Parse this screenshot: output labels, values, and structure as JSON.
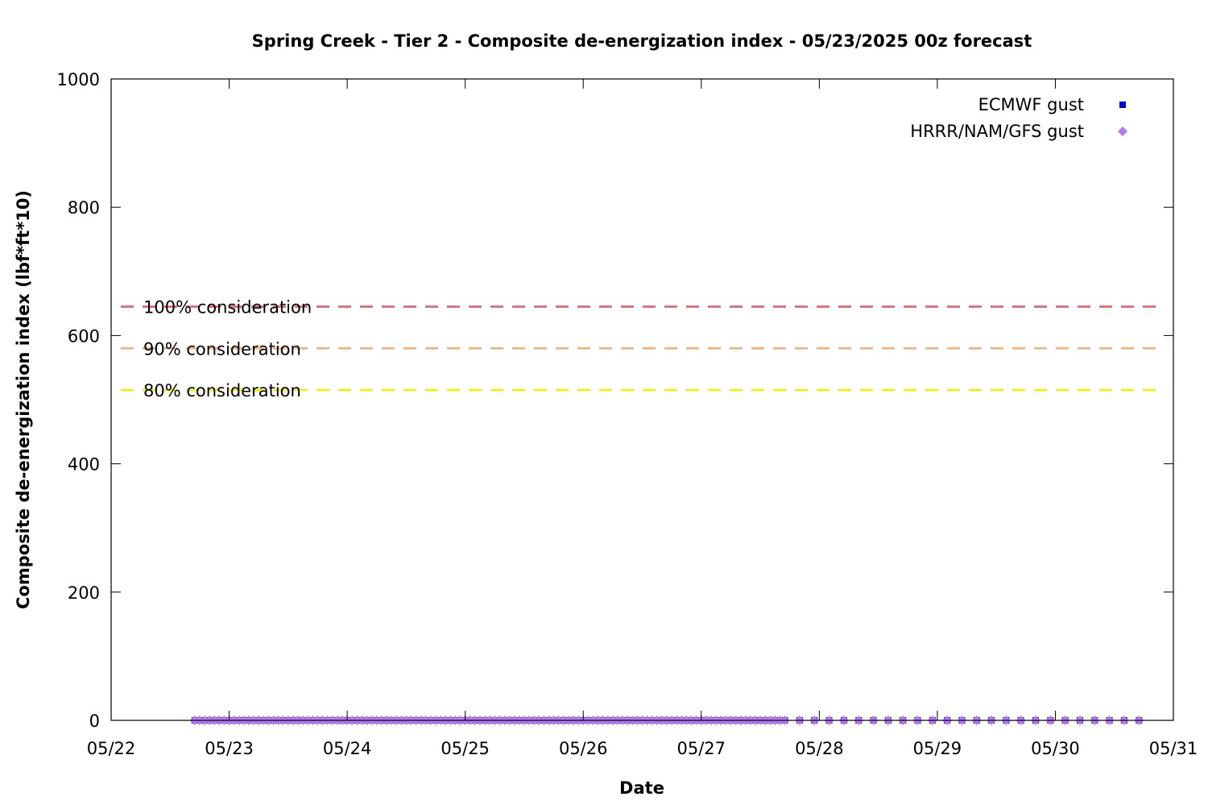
{
  "chart_data": {
    "type": "scatter",
    "title": "Spring Creek - Tier 2 - Composite de-energization index - 05/23/2025 00z forecast",
    "xlabel": "Date",
    "ylabel": "Composite de-energization index (lbf*ft*10)",
    "x_ticks": [
      "05/22",
      "05/23",
      "05/24",
      "05/25",
      "05/26",
      "05/27",
      "05/28",
      "05/29",
      "05/30",
      "05/31"
    ],
    "xlim": [
      "2025-05-22T00:00",
      "2025-05-31T00:00"
    ],
    "y_ticks": [
      "0",
      "200",
      "400",
      "600",
      "800",
      "1000"
    ],
    "ylim": [
      0,
      1000
    ],
    "grid": false,
    "legend_position": "top-right",
    "series": [
      {
        "name": "ECMWF gust",
        "marker": "square",
        "color": "#0000cc",
        "x_start": "2025-05-22T17:00",
        "x_end": "2025-05-30T17:00",
        "x_step_hours_until_2025-05-27T17:00": 1,
        "x_step_hours_after": 3,
        "value": 0
      },
      {
        "name": "HRRR/NAM/GFS gust",
        "marker": "diamond",
        "color": "#b57bee",
        "x_start": "2025-05-22T17:00",
        "x_end": "2025-05-30T17:00",
        "x_step_hours_until_2025-05-27T17:00": 1,
        "x_step_hours_after": 3,
        "value": 0
      }
    ],
    "reference_lines": [
      {
        "label": "100% consideration",
        "value": 645,
        "color": "#e06070"
      },
      {
        "label": "90% consideration",
        "value": 580,
        "color": "#f4b07a"
      },
      {
        "label": "80% consideration",
        "value": 515,
        "color": "#f0f000"
      }
    ]
  }
}
